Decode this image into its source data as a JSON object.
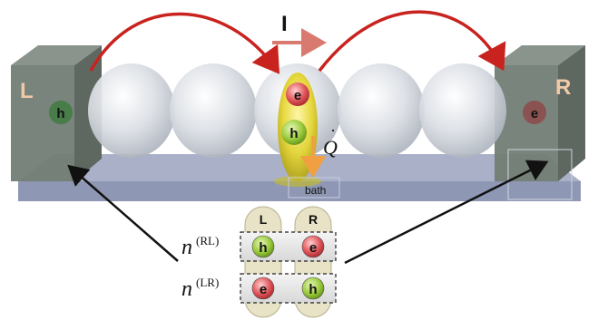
{
  "diagram": {
    "left_lead_label": "L",
    "right_lead_label": "R",
    "current_label": "I",
    "heat_label": "Q",
    "bath_label": "bath",
    "hole_label": "h",
    "electron_label": "e",
    "inset": {
      "col_left": "L",
      "col_right": "R",
      "row1_symbol": "n",
      "row1_superscript": "(RL)",
      "row1_left": "h",
      "row1_right": "e",
      "row2_symbol": "n",
      "row2_superscript": "(LR)",
      "row2_left": "e",
      "row2_right": "h"
    }
  },
  "colors": {
    "lead_box": "#6f7a72",
    "substrate": "#8e97b3",
    "arrow_red": "#c8231e",
    "current_arrow": "#d97a70",
    "heat_arrow": "#f0a040",
    "hole_green": "#9acb3c",
    "electron_red": "#e0555a"
  }
}
